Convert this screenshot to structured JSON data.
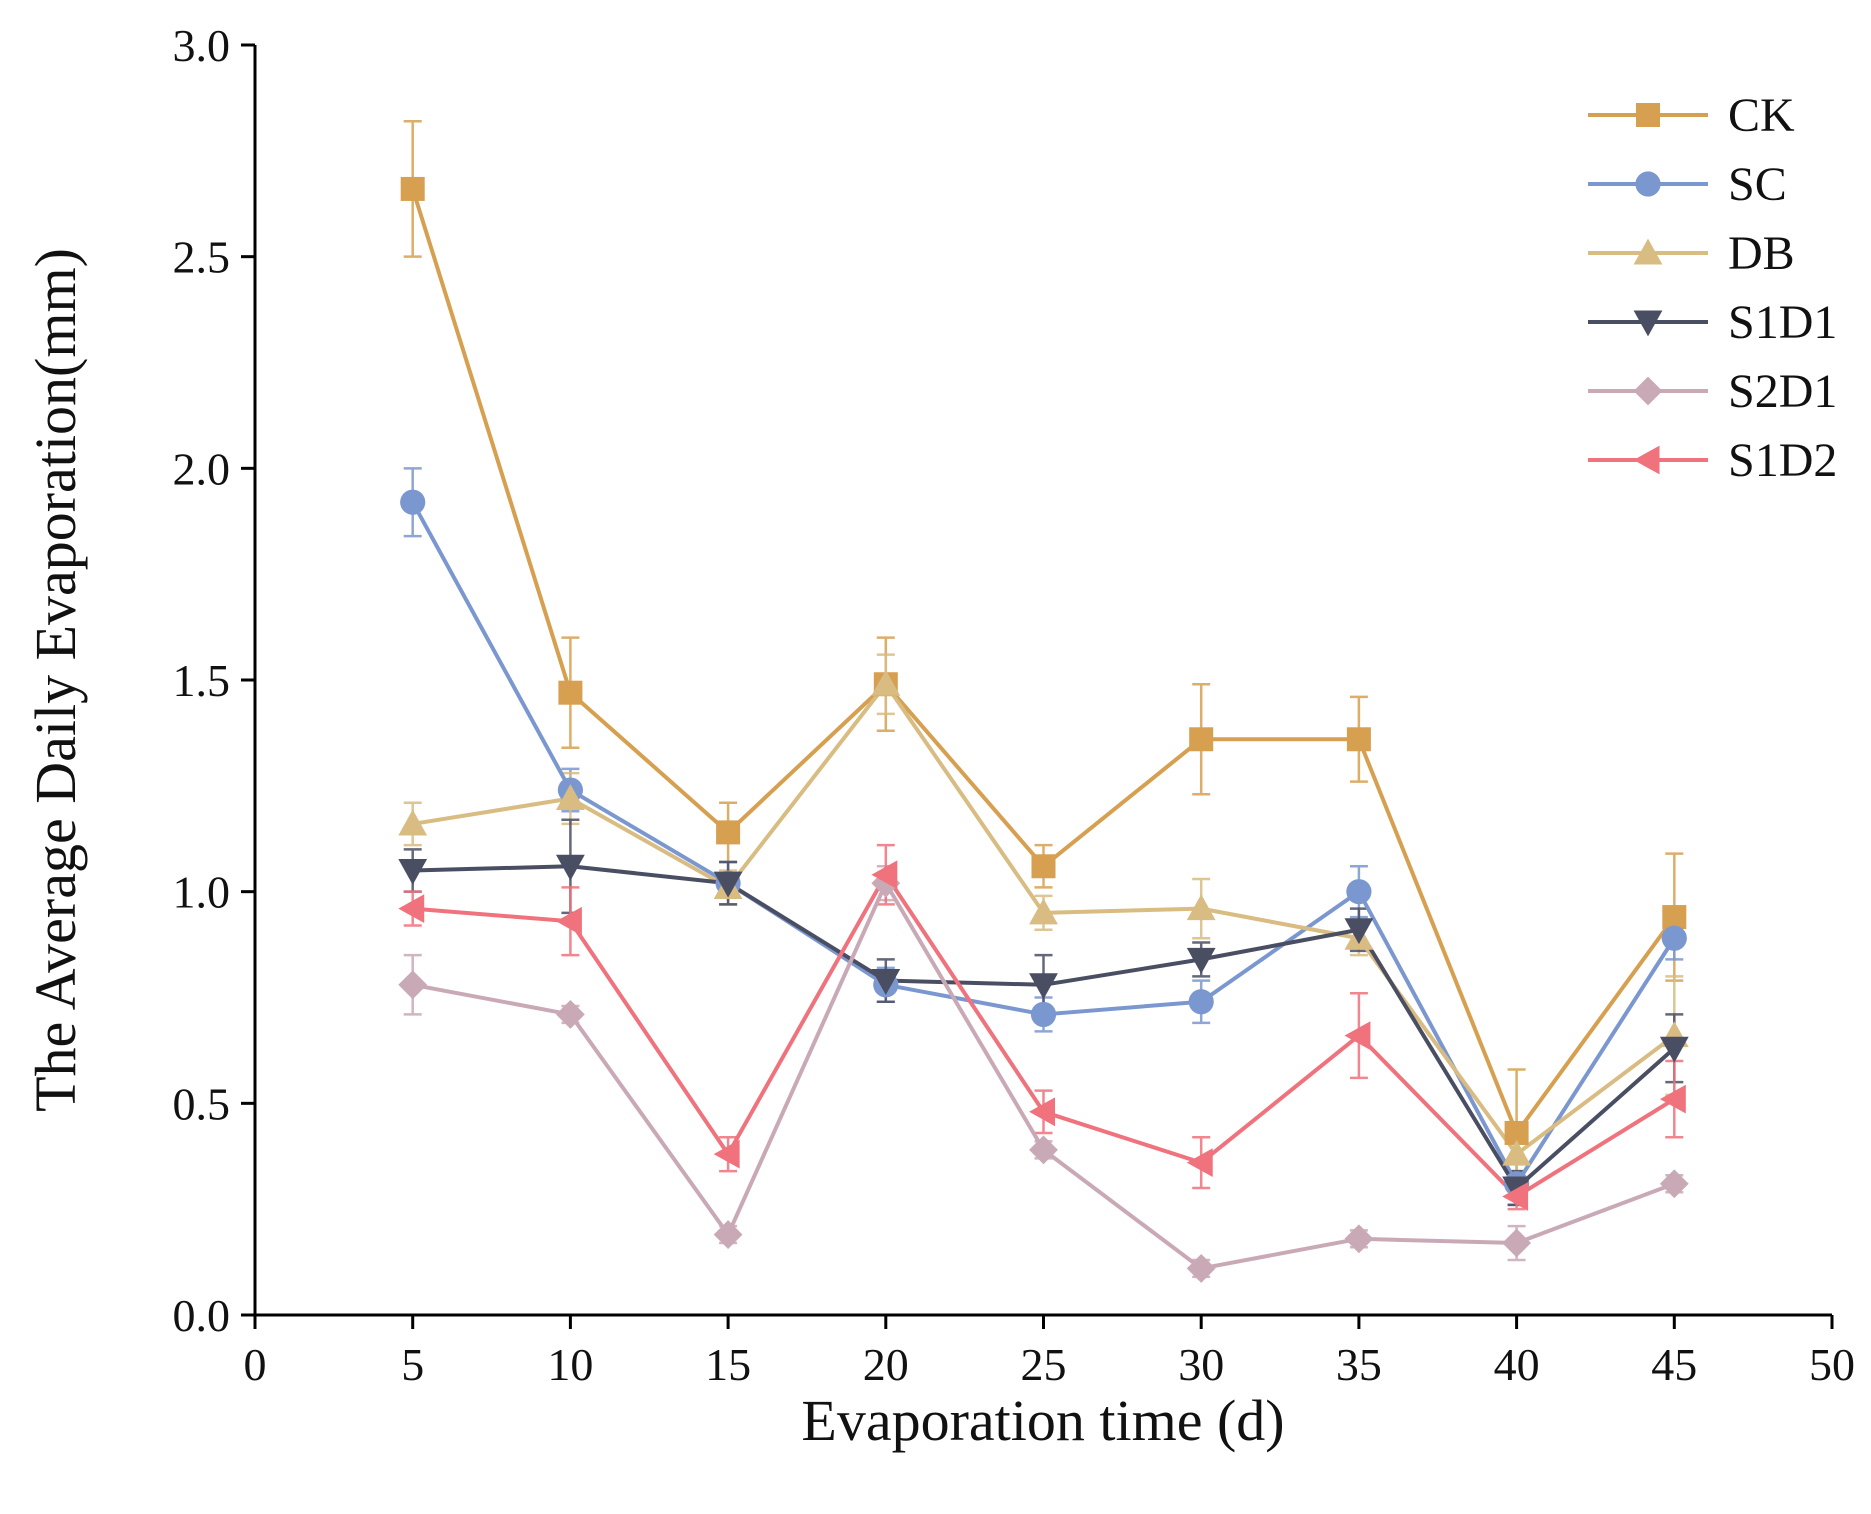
{
  "chart_data": {
    "type": "line",
    "xlabel": "Evaporation time (d)",
    "ylabel": "The Average Daily Evaporation(mm)",
    "xlim": [
      0,
      50
    ],
    "ylim": [
      0,
      3.0
    ],
    "x_ticks": [
      "0",
      "5",
      "10",
      "15",
      "20",
      "25",
      "30",
      "35",
      "40",
      "45",
      "50"
    ],
    "y_ticks": [
      "0.0",
      "0.5",
      "1.0",
      "1.5",
      "2.0",
      "2.5",
      "3.0"
    ],
    "grid": false,
    "legend_position": "top-right",
    "x": [
      5,
      10,
      15,
      20,
      25,
      30,
      35,
      40,
      45
    ],
    "series": [
      {
        "name": "CK",
        "marker": "square",
        "color": "#d6a050",
        "values": [
          2.66,
          1.47,
          1.14,
          1.49,
          1.06,
          1.36,
          1.36,
          0.43,
          0.94
        ],
        "errors": [
          0.16,
          0.13,
          0.07,
          0.11,
          0.05,
          0.13,
          0.1,
          0.15,
          0.15
        ]
      },
      {
        "name": "SC",
        "marker": "circle",
        "color": "#7b97cf",
        "values": [
          1.92,
          1.24,
          1.02,
          0.78,
          0.71,
          0.74,
          1.0,
          0.31,
          0.89
        ],
        "errors": [
          0.08,
          0.05,
          0.05,
          0.04,
          0.04,
          0.05,
          0.06,
          0.05,
          0.05
        ]
      },
      {
        "name": "DB",
        "marker": "triangle-up",
        "color": "#d8bc82",
        "values": [
          1.16,
          1.22,
          1.01,
          1.49,
          0.95,
          0.96,
          0.89,
          0.38,
          0.66
        ],
        "errors": [
          0.05,
          0.06,
          0.04,
          0.07,
          0.04,
          0.07,
          0.04,
          0.04,
          0.14
        ]
      },
      {
        "name": "S1D1",
        "marker": "triangle-down",
        "color": "#4a4e63",
        "values": [
          1.05,
          1.06,
          1.02,
          0.79,
          0.78,
          0.84,
          0.91,
          0.3,
          0.63
        ],
        "errors": [
          0.05,
          0.11,
          0.05,
          0.05,
          0.07,
          0.04,
          0.05,
          0.04,
          0.08
        ]
      },
      {
        "name": "S2D1",
        "marker": "diamond",
        "color": "#c9a9b6",
        "values": [
          0.78,
          0.71,
          0.19,
          1.02,
          0.39,
          0.11,
          0.18,
          0.17,
          0.31
        ],
        "errors": [
          0.07,
          0.02,
          0.02,
          0.04,
          0.02,
          0.02,
          0.02,
          0.04,
          0.02
        ]
      },
      {
        "name": "S1D2",
        "marker": "triangle-left",
        "color": "#f0727c",
        "values": [
          0.96,
          0.93,
          0.38,
          1.04,
          0.48,
          0.36,
          0.66,
          0.28,
          0.51
        ],
        "errors": [
          0.04,
          0.08,
          0.04,
          0.07,
          0.05,
          0.06,
          0.1,
          0.03,
          0.09
        ]
      }
    ]
  }
}
